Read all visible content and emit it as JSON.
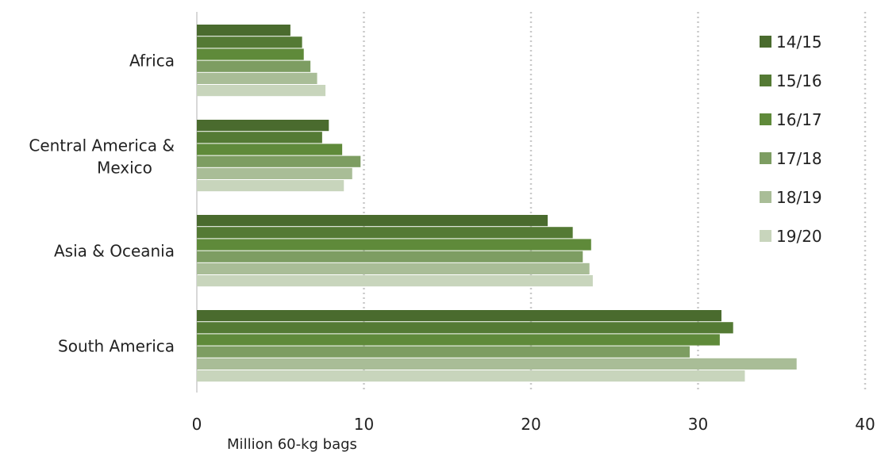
{
  "chart_data": {
    "type": "bar",
    "orientation": "horizontal",
    "categories": [
      "Africa",
      "Central America & Mexico",
      "Asia & Oceania",
      "South America"
    ],
    "series": [
      {
        "name": "14/15",
        "color": "#4a6b2e",
        "values": [
          5.6,
          7.9,
          21.0,
          31.4
        ]
      },
      {
        "name": "15/16",
        "color": "#547a34",
        "values": [
          6.3,
          7.5,
          22.5,
          32.1
        ]
      },
      {
        "name": "16/17",
        "color": "#5f8a3a",
        "values": [
          6.4,
          8.7,
          23.6,
          31.3
        ]
      },
      {
        "name": "17/18",
        "color": "#7d9d62",
        "values": [
          6.8,
          9.8,
          23.1,
          29.5
        ]
      },
      {
        "name": "18/19",
        "color": "#a9bd97",
        "values": [
          7.2,
          9.3,
          23.5,
          35.9
        ]
      },
      {
        "name": "19/20",
        "color": "#c8d5bc",
        "values": [
          7.7,
          8.8,
          23.7,
          32.8
        ]
      }
    ],
    "xlim": [
      0,
      40
    ],
    "xticks": [
      0,
      10,
      20,
      30,
      40
    ],
    "xlabel": "Million 60-kg bags",
    "title": "",
    "ylabel": "",
    "grid": "vertical dotted",
    "legend_position": "right"
  }
}
